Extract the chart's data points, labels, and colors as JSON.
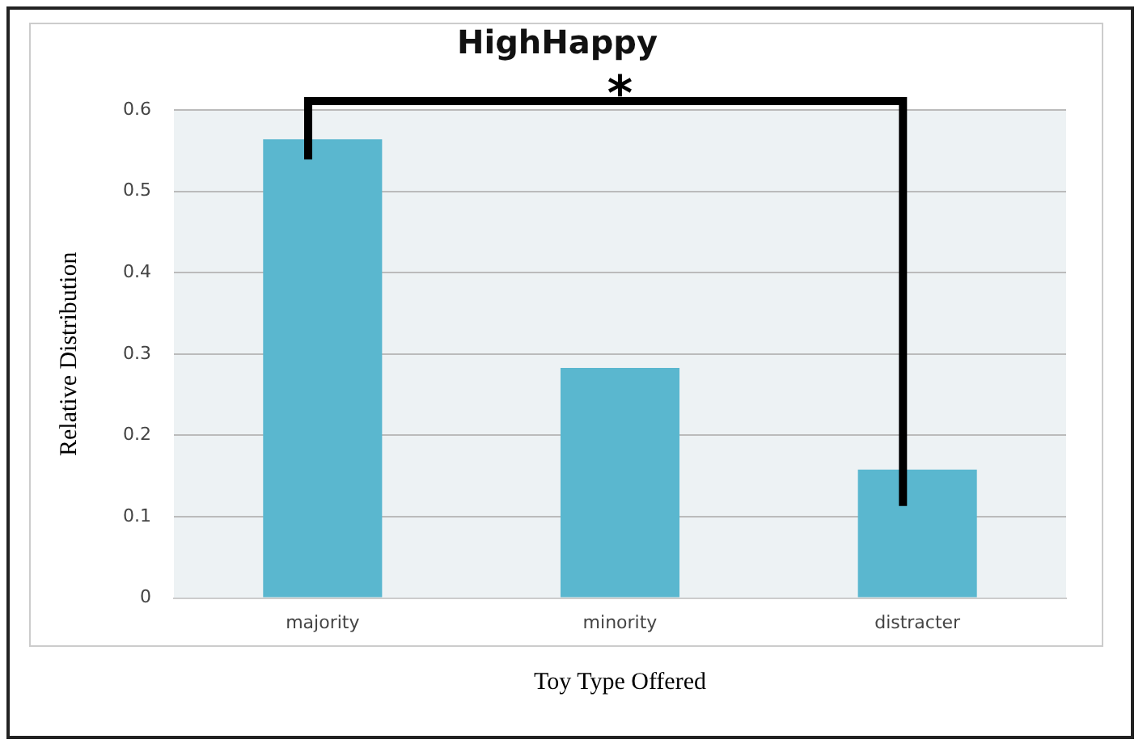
{
  "chart_data": {
    "type": "bar",
    "title": "HighHappy",
    "xlabel": "Toy Type Offered",
    "ylabel": "Relative Distribution",
    "categories": [
      "majority",
      "minority",
      "distracter"
    ],
    "values": [
      0.564,
      0.283,
      0.158
    ],
    "color": "#5ab7cf",
    "ylim": [
      0,
      0.6
    ],
    "yticks": [
      0,
      0.1,
      0.2,
      0.3,
      0.4,
      0.5,
      0.6
    ],
    "grid": "y",
    "legend": false,
    "annotations": [
      "*"
    ]
  }
}
